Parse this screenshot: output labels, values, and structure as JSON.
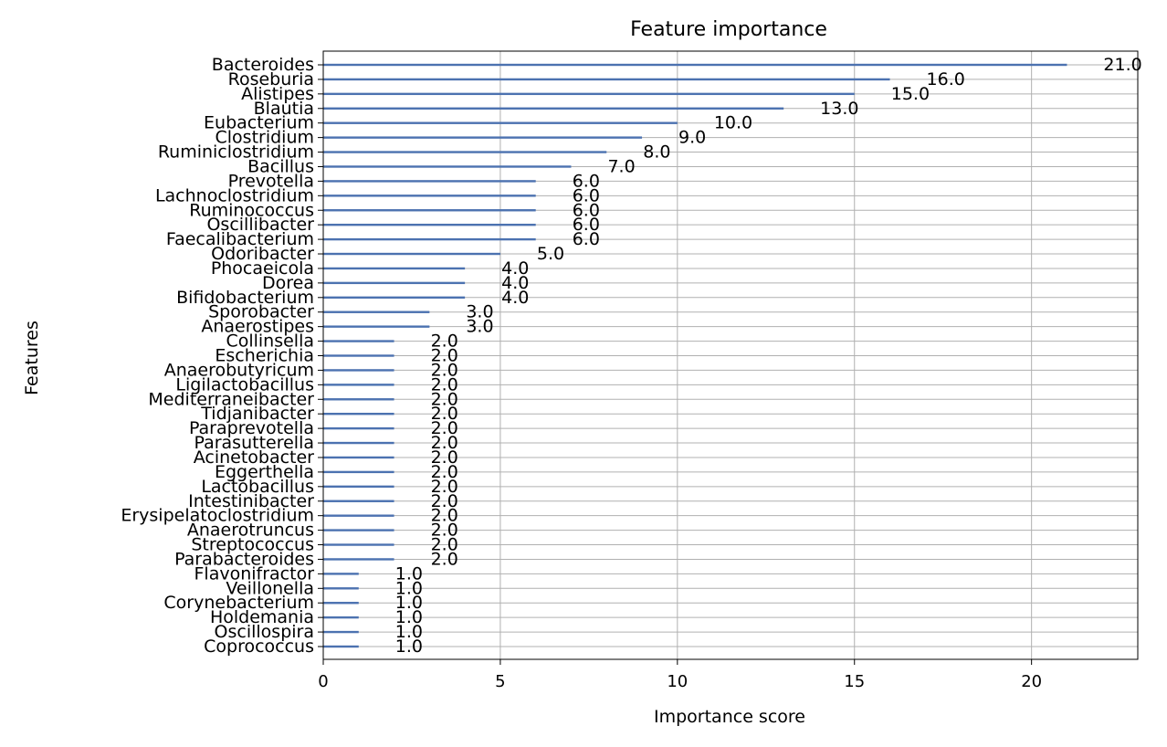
{
  "chart_data": {
    "type": "bar",
    "orientation": "horizontal",
    "title": "Feature importance",
    "xlabel": "Importance score",
    "ylabel": "Features",
    "xlim": [
      0,
      23
    ],
    "xticks": [
      0,
      5,
      10,
      15,
      20
    ],
    "grid": true,
    "bar_color": "#4c72b0",
    "categories": [
      "Bacteroides",
      "Roseburia",
      "Alistipes",
      "Blautia",
      "Eubacterium",
      "Clostridium",
      "Ruminiclostridium",
      "Bacillus",
      "Prevotella",
      "Lachnoclostridium",
      "Ruminococcus",
      "Oscillibacter",
      "Faecalibacterium",
      "Odoribacter",
      "Phocaeicola",
      "Dorea",
      "Bifidobacterium",
      "Sporobacter",
      "Anaerostipes",
      "Collinsella",
      "Escherichia",
      "Anaerobutyricum",
      "Ligilactobacillus",
      "Mediterraneibacter",
      "Tidjanibacter",
      "Paraprevotella",
      "Parasutterella",
      "Acinetobacter",
      "Eggerthella",
      "Lactobacillus",
      "Intestinibacter",
      "Erysipelatoclostridium",
      "Anaerotruncus",
      "Streptococcus",
      "Parabacteroides",
      "Flavonifractor",
      "Veillonella",
      "Corynebacterium",
      "Holdemania",
      "Oscillospira",
      "Coprococcus"
    ],
    "values": [
      21,
      16,
      15,
      13,
      10,
      9,
      8,
      7,
      6,
      6,
      6,
      6,
      6,
      5,
      4,
      4,
      4,
      3,
      3,
      2,
      2,
      2,
      2,
      2,
      2,
      2,
      2,
      2,
      2,
      2,
      2,
      2,
      2,
      2,
      2,
      1,
      1,
      1,
      1,
      1,
      1
    ],
    "value_labels": [
      "21.0",
      "16.0",
      "15.0",
      "13.0",
      "10.0",
      "9.0",
      "8.0",
      "7.0",
      "6.0",
      "6.0",
      "6.0",
      "6.0",
      "6.0",
      "5.0",
      "4.0",
      "4.0",
      "4.0",
      "3.0",
      "3.0",
      "2.0",
      "2.0",
      "2.0",
      "2.0",
      "2.0",
      "2.0",
      "2.0",
      "2.0",
      "2.0",
      "2.0",
      "2.0",
      "2.0",
      "2.0",
      "2.0",
      "2.0",
      "2.0",
      "1.0",
      "1.0",
      "1.0",
      "1.0",
      "1.0",
      "1.0"
    ]
  }
}
